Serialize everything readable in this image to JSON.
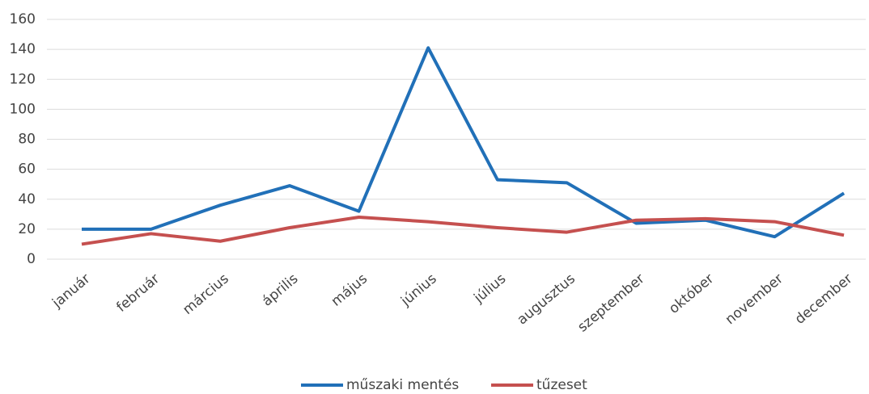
{
  "chart_data": {
    "type": "line",
    "categories": [
      "január",
      "február",
      "március",
      "április",
      "május",
      "június",
      "július",
      "augusztus",
      "szeptember",
      "október",
      "november",
      "december"
    ],
    "series": [
      {
        "name": "műszaki mentés",
        "color": "#2170b8",
        "values": [
          20,
          20,
          36,
          49,
          32,
          141,
          53,
          51,
          24,
          26,
          15,
          44
        ]
      },
      {
        "name": "tűzeset",
        "color": "#c5504f",
        "values": [
          10,
          17,
          12,
          21,
          28,
          25,
          21,
          18,
          26,
          27,
          25,
          16
        ]
      }
    ],
    "ylim": [
      0,
      160
    ],
    "yticks": [
      0,
      20,
      40,
      60,
      80,
      100,
      120,
      140,
      160
    ],
    "grid": true,
    "legend": "bottom"
  }
}
